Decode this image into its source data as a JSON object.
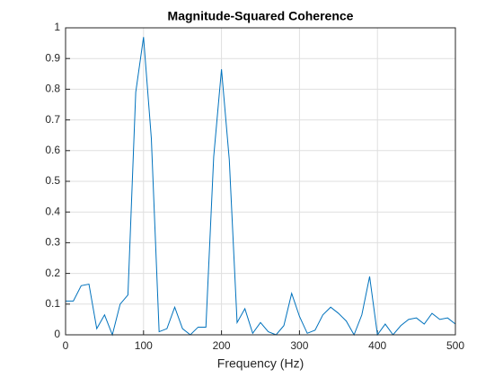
{
  "chart_data": {
    "type": "line",
    "title": "Magnitude-Squared Coherence",
    "x_label": "Frequency (Hz)",
    "x": [
      0,
      10,
      20,
      30,
      40,
      50,
      60,
      70,
      80,
      90,
      100,
      110,
      120,
      130,
      140,
      150,
      160,
      170,
      180,
      190,
      200,
      210,
      220,
      230,
      240,
      250,
      260,
      270,
      280,
      290,
      300,
      310,
      320,
      330,
      340,
      350,
      360,
      370,
      380,
      390,
      400,
      410,
      420,
      430,
      440,
      450,
      460,
      470,
      480,
      490,
      500
    ],
    "series": [
      {
        "color": "#0072bd",
        "values": [
          0.11,
          0.11,
          0.16,
          0.165,
          0.02,
          0.065,
          0.0,
          0.1,
          0.13,
          0.79,
          0.97,
          0.64,
          0.01,
          0.02,
          0.09,
          0.02,
          0.0,
          0.025,
          0.025,
          0.58,
          0.865,
          0.57,
          0.04,
          0.085,
          0.005,
          0.04,
          0.01,
          0.0,
          0.03,
          0.135,
          0.06,
          0.005,
          0.015,
          0.065,
          0.09,
          0.07,
          0.045,
          0.0,
          0.065,
          0.19,
          0.0,
          0.035,
          0.0,
          0.03,
          0.05,
          0.055,
          0.035,
          0.07,
          0.05,
          0.055,
          0.035
        ]
      }
    ],
    "xlim": [
      0,
      500
    ],
    "xticks": [
      0,
      100,
      200,
      300,
      400,
      500
    ],
    "ylim": [
      0,
      1
    ],
    "yticks": [
      0,
      0.1,
      0.2,
      0.3,
      0.4,
      0.5,
      0.6,
      0.7,
      0.8,
      0.9,
      1
    ],
    "grid": true
  }
}
